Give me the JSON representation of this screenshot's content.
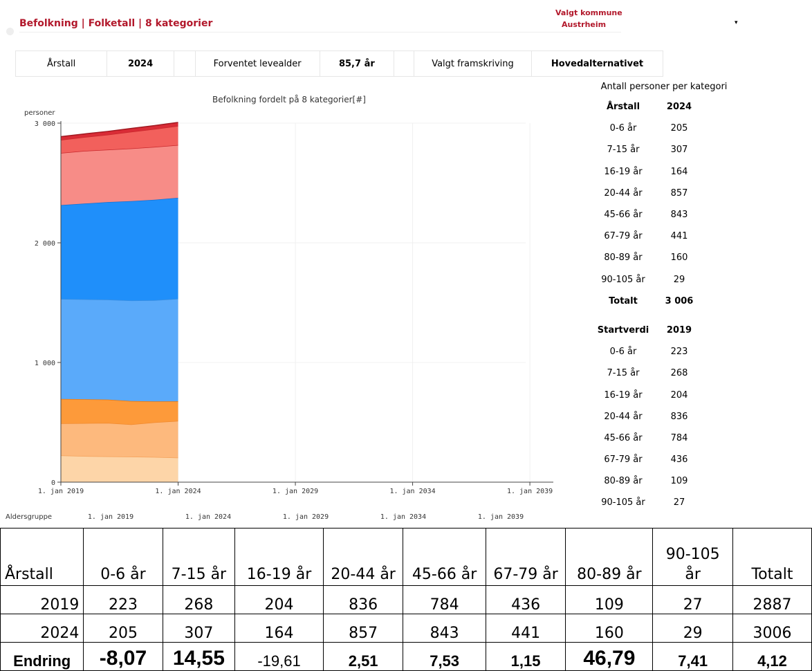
{
  "header": {
    "title": "Befolkning | Folketall | 8 kategorier",
    "municipality_label": "Valgt kommune",
    "municipality": "Austrheim"
  },
  "info_bar": [
    {
      "label": "Årstall",
      "value": "2024"
    },
    {
      "label": "Forventet levealder",
      "value": "85,7 år"
    },
    {
      "label": "Valgt framskriving",
      "value": "Hovedalternativet"
    }
  ],
  "chart_data": {
    "type": "stacked-area",
    "title": "Befolkning fordelt på 8 kategorier[#]",
    "y_label": "personer",
    "x": [
      2019,
      2020,
      2021,
      2022,
      2023,
      2024
    ],
    "xlim": [
      2019,
      2040
    ],
    "xticks": [
      {
        "value": 2019,
        "label": "1. jan 2019"
      },
      {
        "value": 2024,
        "label": "1. jan 2024"
      },
      {
        "value": 2029,
        "label": "1. jan 2029"
      },
      {
        "value": 2034,
        "label": "1. jan 2034"
      },
      {
        "value": 2039,
        "label": "1. jan 2039"
      }
    ],
    "ylim": [
      0,
      3000
    ],
    "yticks": [
      0,
      {
        "value": 1000,
        "label": "1 000"
      },
      {
        "value": 2000,
        "label": "2 000"
      },
      {
        "value": 3000,
        "label": "3 000"
      }
    ],
    "grid": true,
    "series": [
      {
        "name": "0-6 år",
        "color": "#fdd5a8",
        "line": "#f4a15a",
        "values": [
          223,
          218,
          215,
          213,
          210,
          205
        ]
      },
      {
        "name": "7-15 år",
        "color": "#fdb97d",
        "line": "#f08a30",
        "values": [
          268,
          275,
          280,
          270,
          290,
          307
        ]
      },
      {
        "name": "16-19 år",
        "color": "#fd9a3a",
        "line": "#e8790f",
        "values": [
          204,
          200,
          195,
          195,
          175,
          164
        ]
      },
      {
        "name": "20-44 år",
        "color": "#5aaafa",
        "line": "#3a8ee0",
        "values": [
          836,
          835,
          835,
          840,
          845,
          857
        ]
      },
      {
        "name": "45-66 år",
        "color": "#1f8ffa",
        "line": "#1670d0",
        "values": [
          784,
          800,
          815,
          830,
          840,
          843
        ]
      },
      {
        "name": "67-79 år",
        "color": "#f78c87",
        "line": "#c8282c",
        "values": [
          436,
          440,
          438,
          440,
          441,
          441
        ]
      },
      {
        "name": "80-89 år",
        "color": "#f2605c",
        "line": "#c8282c",
        "values": [
          109,
          115,
          125,
          140,
          150,
          160
        ]
      },
      {
        "name": "90-105 år",
        "color": "#d92c36",
        "line": "#a01820",
        "values": [
          27,
          27,
          28,
          28,
          29,
          29
        ]
      }
    ]
  },
  "range_slider": {
    "label": "Aldersgruppe"
  },
  "side_table": {
    "title": "Antall personer per kategori",
    "sections": [
      {
        "head": [
          "Årstall",
          "2024"
        ],
        "rows": [
          [
            "0-6 år",
            "205"
          ],
          [
            "7-15 år",
            "307"
          ],
          [
            "16-19 år",
            "164"
          ],
          [
            "20-44 år",
            "857"
          ],
          [
            "45-66 år",
            "843"
          ],
          [
            "67-79 år",
            "441"
          ],
          [
            "80-89 år",
            "160"
          ],
          [
            "90-105 år",
            "29"
          ]
        ],
        "total": [
          "Totalt",
          "3 006"
        ]
      },
      {
        "head": [
          "Startverdi",
          "2019"
        ],
        "rows": [
          [
            "0-6 år",
            "223"
          ],
          [
            "7-15 år",
            "268"
          ],
          [
            "16-19 år",
            "204"
          ],
          [
            "20-44 år",
            "836"
          ],
          [
            "45-66 år",
            "784"
          ],
          [
            "67-79 år",
            "436"
          ],
          [
            "80-89 år",
            "109"
          ],
          [
            "90-105 år",
            "27"
          ]
        ]
      }
    ]
  },
  "table": {
    "header": [
      "Årstall",
      "0-6 år",
      "7-15 år",
      "16-19 år",
      "20-44 år",
      "45-66 år",
      "67-79 år",
      "80-89 år",
      "90-105 år",
      "Totalt"
    ],
    "rows": [
      [
        "2019",
        "223",
        "268",
        "204",
        "836",
        "784",
        "436",
        "109",
        "27",
        "2887"
      ],
      [
        "2024",
        "205",
        "307",
        "164",
        "857",
        "843",
        "441",
        "160",
        "29",
        "3006"
      ],
      [
        "Endring",
        "-8,07",
        "14,55",
        "-19,61",
        "2,51",
        "7,53",
        "1,15",
        "46,79",
        "7,41",
        "4,12"
      ]
    ]
  }
}
